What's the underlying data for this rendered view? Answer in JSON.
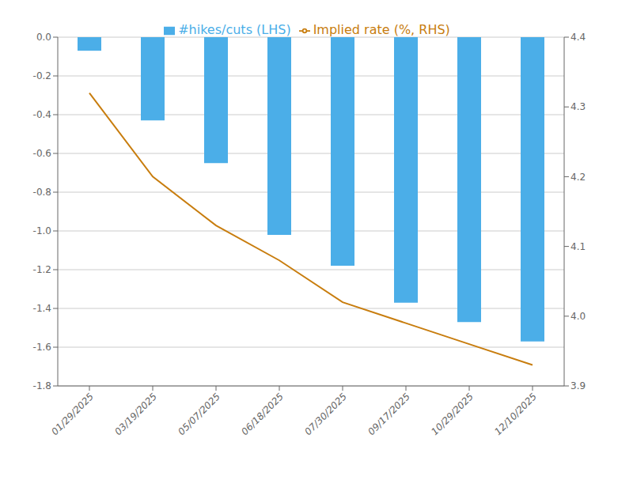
{
  "chart_data": {
    "type": "bar",
    "categories": [
      "01/29/2025",
      "03/19/2025",
      "05/07/2025",
      "06/18/2025",
      "07/30/2025",
      "09/17/2025",
      "10/29/2025",
      "12/10/2025"
    ],
    "series": [
      {
        "name": "#hikes/cuts (LHS)",
        "type": "bar",
        "color": "#4baee8",
        "values": [
          -0.07,
          -0.43,
          -0.65,
          -1.02,
          -1.18,
          -1.37,
          -1.47,
          -1.57
        ]
      },
      {
        "name": "Implied rate (%, RHS)",
        "type": "line",
        "axis": "y2",
        "color": "#c87d0e",
        "values": [
          4.32,
          4.2,
          4.13,
          4.08,
          4.02,
          3.99,
          3.96,
          3.93
        ]
      }
    ],
    "ylim": [
      -1.8,
      0.0
    ],
    "yticks": [
      {
        "value": 0.0,
        "label": "0.0"
      },
      -0.2,
      -0.4,
      -0.6,
      -0.8,
      {
        "value": -1.0,
        "label": "-1.0"
      },
      -1.2,
      -1.4,
      -1.6,
      -1.8
    ],
    "y2lim": [
      3.9,
      4.4
    ],
    "y2ticks": [
      4.4,
      4.3,
      4.2,
      4.1,
      {
        "value": 4.0,
        "label": "4.0"
      },
      3.9
    ],
    "grid": true,
    "legend": "top"
  }
}
